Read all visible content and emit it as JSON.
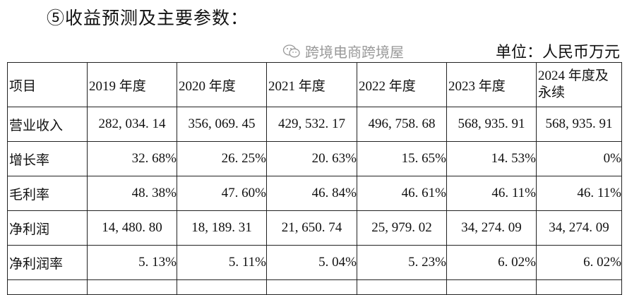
{
  "title": "⑤收益预测及主要参数：",
  "unit": "单位：人民币万元",
  "table": {
    "headers": [
      "项目",
      "2019 年度",
      "2020 年度",
      "2021 年度",
      "2022 年度",
      "2023 年度",
      "2024 年度及永续"
    ],
    "rows": [
      {
        "label": "营业收入",
        "type": "num",
        "values": [
          "282, 034. 14",
          "356, 069. 45",
          "429, 532. 17",
          "496, 758. 68",
          "568, 935. 91",
          "568, 935. 91"
        ]
      },
      {
        "label": "增长率",
        "type": "pct",
        "values": [
          "32. 68%",
          "26. 25%",
          "20. 63%",
          "15. 65%",
          "14. 53%",
          "0%"
        ]
      },
      {
        "label": "毛利率",
        "type": "pct",
        "values": [
          "48. 38%",
          "47. 60%",
          "46. 84%",
          "46. 61%",
          "46. 11%",
          "46. 11%"
        ]
      },
      {
        "label": "净利润",
        "type": "num",
        "values": [
          "14, 480. 80",
          "18, 189. 31",
          "21, 650. 74",
          "25, 979. 02",
          "34, 274. 09",
          "34, 274. 09"
        ]
      },
      {
        "label": "净利润率",
        "type": "pct",
        "values": [
          "5. 13%",
          "5. 11%",
          "5. 04%",
          "5. 23%",
          "6. 02%",
          "6. 02%"
        ]
      }
    ]
  },
  "watermark": {
    "text": "跨境电商跨境屋",
    "icon": "wechat-icon"
  }
}
